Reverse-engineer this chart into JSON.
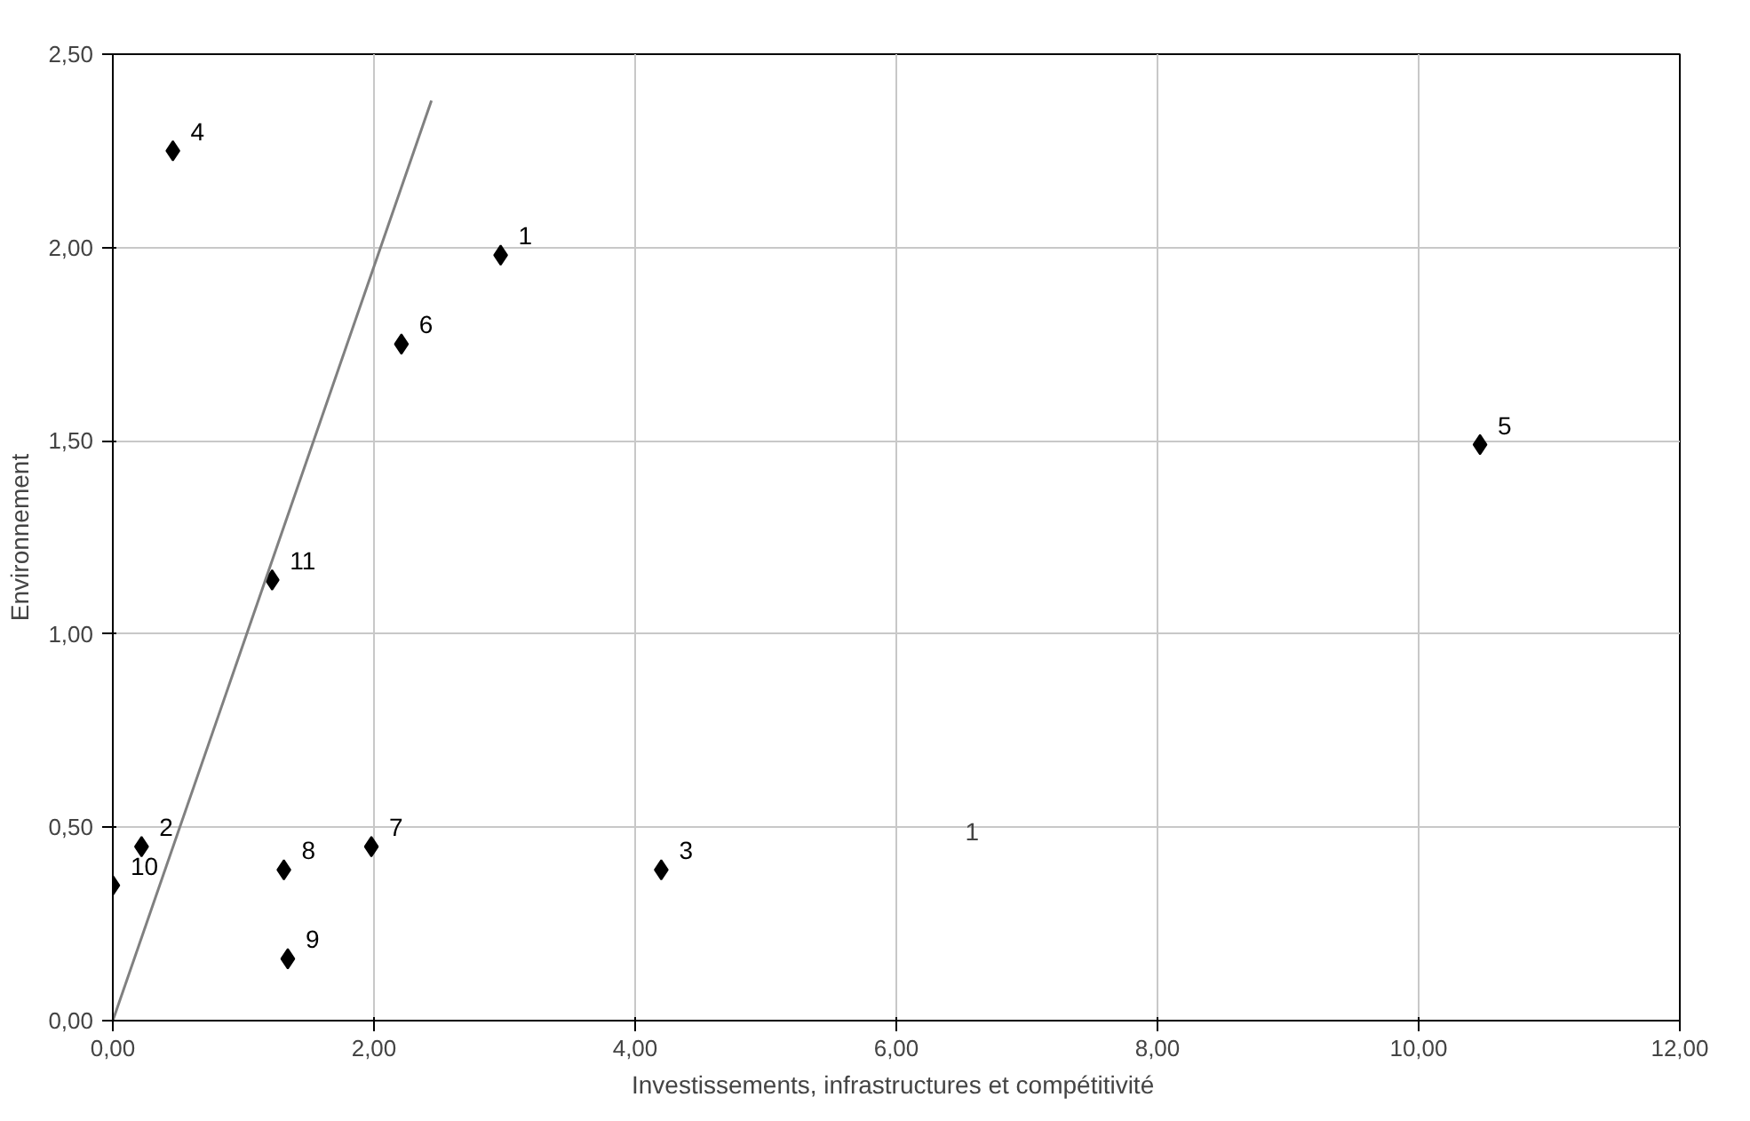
{
  "chart_data": {
    "type": "scatter",
    "xlabel": "Investissements, infrastructures  et compétitivité",
    "ylabel": "Environnement",
    "xlim": [
      0,
      12
    ],
    "ylim": [
      0,
      2.5
    ],
    "xticks": [
      {
        "value": 0,
        "label": "0,00"
      },
      {
        "value": 2,
        "label": "2,00"
      },
      {
        "value": 4,
        "label": "4,00"
      },
      {
        "value": 6,
        "label": "6,00"
      },
      {
        "value": 8,
        "label": "8,00"
      },
      {
        "value": 10,
        "label": "10,00"
      },
      {
        "value": 12,
        "label": "12,00"
      }
    ],
    "yticks": [
      {
        "value": 0,
        "label": "0,00"
      },
      {
        "value": 0.5,
        "label": "0,50"
      },
      {
        "value": 1,
        "label": "1,00"
      },
      {
        "value": 1.5,
        "label": "1,50"
      },
      {
        "value": 2,
        "label": "2,00"
      },
      {
        "value": 2.5,
        "label": "2,50"
      }
    ],
    "grid": true,
    "series": [
      {
        "color": "#000000",
        "marker": "diamond",
        "x": [
          2.97,
          0.22,
          4.2,
          0.46,
          10.47,
          2.21,
          1.98,
          1.31,
          1.34,
          0.0,
          1.22
        ],
        "values": [
          1.98,
          0.45,
          0.39,
          2.25,
          1.49,
          1.75,
          0.45,
          0.39,
          0.16,
          0.35,
          1.14
        ]
      },
      {
        "type": "line",
        "color": "#808080",
        "x": [
          0,
          2.44
        ],
        "values": [
          0,
          2.38
        ]
      }
    ],
    "annotations": [
      {
        "text": "1",
        "x": 2.97,
        "y": 1.98
      },
      {
        "text": "2",
        "x": 0.22,
        "y": 0.45
      },
      {
        "text": "3",
        "x": 4.2,
        "y": 0.39
      },
      {
        "text": "4",
        "x": 0.46,
        "y": 2.25
      },
      {
        "text": "5",
        "x": 10.47,
        "y": 1.49
      },
      {
        "text": "6",
        "x": 2.21,
        "y": 1.75
      },
      {
        "text": "7",
        "x": 1.98,
        "y": 0.45
      },
      {
        "text": "8",
        "x": 1.31,
        "y": 0.39
      },
      {
        "text": "9",
        "x": 1.34,
        "y": 0.16
      },
      {
        "text": "10",
        "x": 0.0,
        "y": 0.35
      },
      {
        "text": "11",
        "x": 1.22,
        "y": 1.14
      },
      "1"
    ]
  }
}
